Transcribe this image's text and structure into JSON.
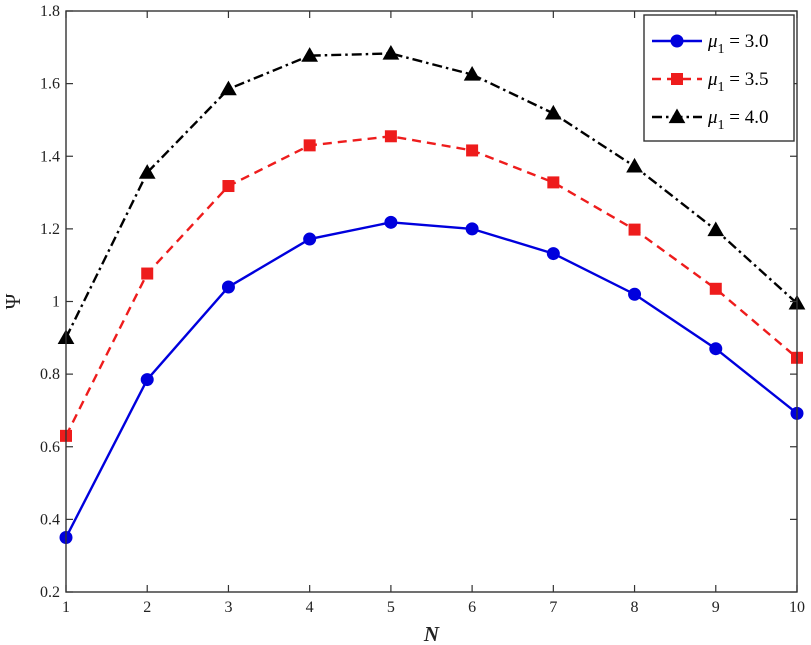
{
  "chart_data": {
    "type": "line",
    "title": "",
    "xlabel": "N",
    "ylabel": "Ψ",
    "xlim": [
      1,
      10
    ],
    "ylim": [
      0.2,
      1.8
    ],
    "x": [
      1,
      2,
      3,
      4,
      5,
      6,
      7,
      8,
      9,
      10
    ],
    "xticks": [
      "1",
      "2",
      "3",
      "4",
      "5",
      "6",
      "7",
      "8",
      "9",
      "10"
    ],
    "yticks": [
      "0.2",
      "0.4",
      "0.6",
      "0.8",
      "1",
      "1.2",
      "1.4",
      "1.6",
      "1.8"
    ],
    "grid": false,
    "legend_position": "top-right",
    "series": [
      {
        "name": "3.0",
        "legend_prefix": "μ",
        "legend_subscript": "1",
        "legend_eq": " = ",
        "color": "#0000dd",
        "line_style": "solid",
        "marker": "circle",
        "values": [
          0.35,
          0.785,
          1.04,
          1.172,
          1.218,
          1.2,
          1.132,
          1.02,
          0.87,
          0.692
        ]
      },
      {
        "name": "3.5",
        "legend_prefix": "μ",
        "legend_subscript": "1",
        "legend_eq": " = ",
        "color": "#ee1c1c",
        "line_style": "dashed",
        "marker": "square",
        "values": [
          0.63,
          1.077,
          1.318,
          1.43,
          1.455,
          1.416,
          1.328,
          1.198,
          1.035,
          0.845
        ]
      },
      {
        "name": "4.0",
        "legend_prefix": "μ",
        "legend_subscript": "1",
        "legend_eq": " = ",
        "color": "#000000",
        "line_style": "dashdot",
        "marker": "triangle",
        "values": [
          0.9,
          1.355,
          1.585,
          1.677,
          1.683,
          1.625,
          1.518,
          1.372,
          1.197,
          0.995
        ]
      }
    ]
  }
}
